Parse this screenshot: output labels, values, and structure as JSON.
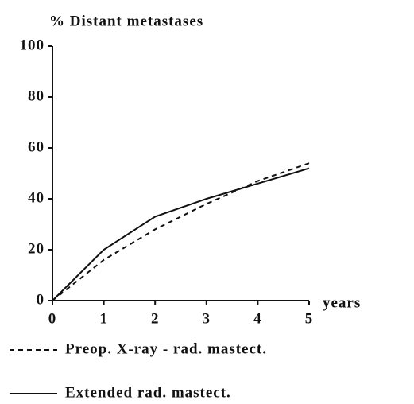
{
  "chart_data": {
    "type": "line",
    "title": "% Distant metastases",
    "x_label": "years",
    "x": [
      0,
      1,
      2,
      3,
      4,
      5
    ],
    "series": [
      {
        "name": "Preop. X-ray - rad. mastect.",
        "color": "#111111",
        "dashed": true,
        "values": [
          0,
          16,
          28,
          38,
          47,
          54
        ]
      },
      {
        "name": "Extended rad. mastect.",
        "color": "#111111",
        "dashed": false,
        "values": [
          0,
          20,
          33,
          40,
          46,
          52
        ]
      }
    ],
    "xlim": [
      0,
      5
    ],
    "xticks": [
      0,
      1,
      2,
      3,
      4,
      5
    ],
    "ylim": [
      0,
      100
    ],
    "yticks": [
      0,
      20,
      40,
      60,
      80,
      100
    ],
    "grid": false
  }
}
